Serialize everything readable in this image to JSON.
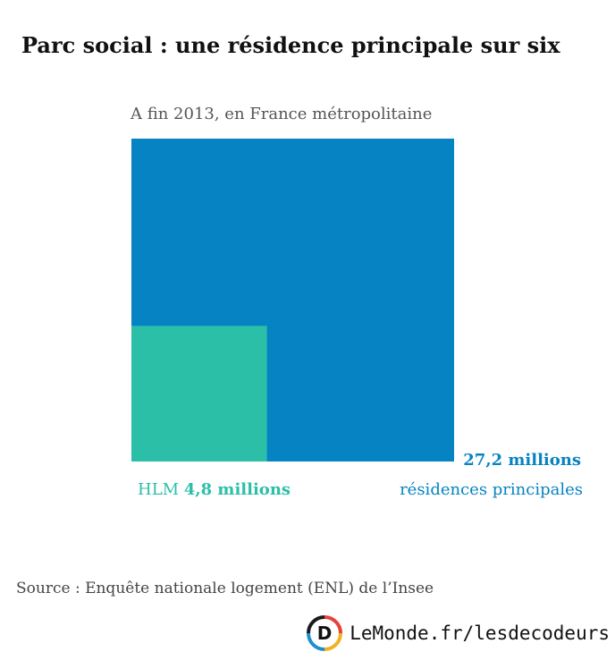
{
  "chart_data": {
    "type": "area",
    "title": "Parc social : une résidence principale sur six",
    "subtitle": "A fin 2013, en France métropolitaine",
    "unit": "millions",
    "total": {
      "name": "résidences principales",
      "value": 27.2,
      "value_label": "27,2 millions",
      "color": "#0683c2"
    },
    "part": {
      "name": "HLM",
      "value": 4.8,
      "value_label": "4,8 millions",
      "color": "#2bbfa8"
    }
  },
  "source": "Source : Enquête nationale logement (ENL) de l’Insee",
  "brand": {
    "text": "LeMonde.fr/lesdecodeurs",
    "logo_letter": "D"
  }
}
